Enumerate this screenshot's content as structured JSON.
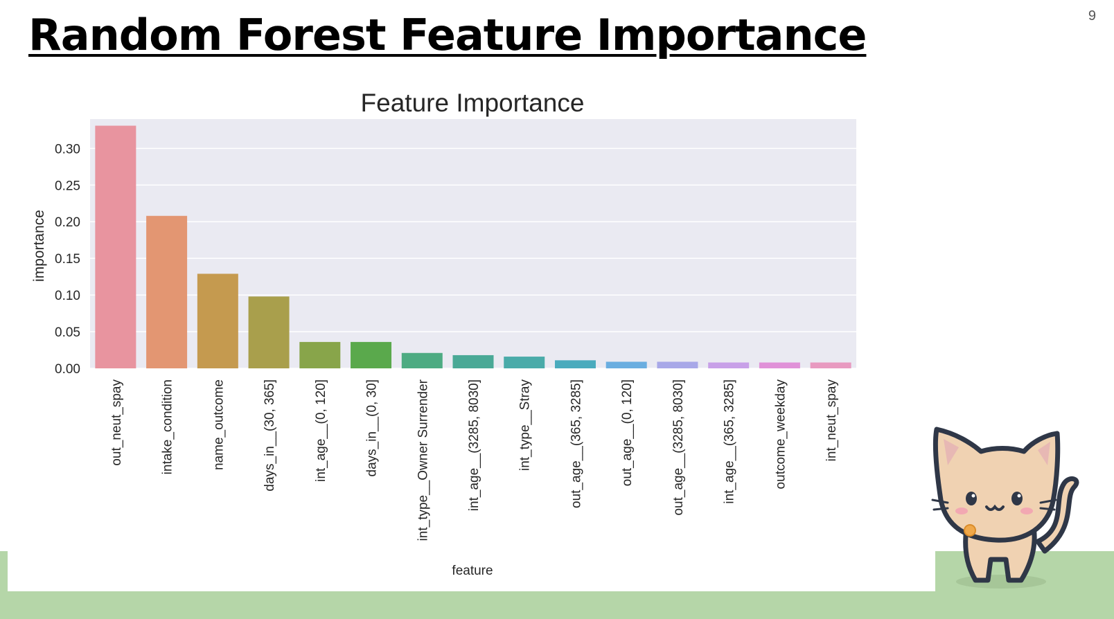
{
  "slide": {
    "title": "Random Forest Feature Importance",
    "page_number": "9"
  },
  "colors": {
    "plot_background": "#eaeaf2",
    "grid": "#ffffff",
    "ground": "#b5d6a8"
  },
  "mascot": "cat-mascot-icon",
  "chart_data": {
    "type": "bar",
    "title": "Feature Importance",
    "xlabel": "feature",
    "ylabel": "importance",
    "ylim": [
      0,
      0.34
    ],
    "yticks": [
      "0.00",
      "0.05",
      "0.10",
      "0.15",
      "0.20",
      "0.25",
      "0.30"
    ],
    "grid": true,
    "categories": [
      "out_neut_spay",
      "intake_condition",
      "name_outcome",
      "days_in__(30, 365]",
      "int_age__(0, 120]",
      "days_in__(0, 30]",
      "int_type__Owner Surrender",
      "int_age__(3285, 8030]",
      "int_type__Stray",
      "out_age__(365, 3285]",
      "out_age__(0, 120]",
      "out_age__(3285, 8030]",
      "int_age__(365, 3285]",
      "outcome_weekday",
      "int_neut_spay"
    ],
    "values": [
      0.331,
      0.208,
      0.129,
      0.098,
      0.036,
      0.036,
      0.021,
      0.018,
      0.016,
      0.011,
      0.009,
      0.009,
      0.008,
      0.008,
      0.008
    ],
    "colors": [
      "#e8949f",
      "#e39672",
      "#c59a4f",
      "#a99f4c",
      "#88a54a",
      "#5aa94c",
      "#4dab82",
      "#4aa996",
      "#4aaba9",
      "#4aabbd",
      "#6aaee0",
      "#a8a8e8",
      "#c8a0e8",
      "#e091d8",
      "#e89ac0"
    ]
  }
}
